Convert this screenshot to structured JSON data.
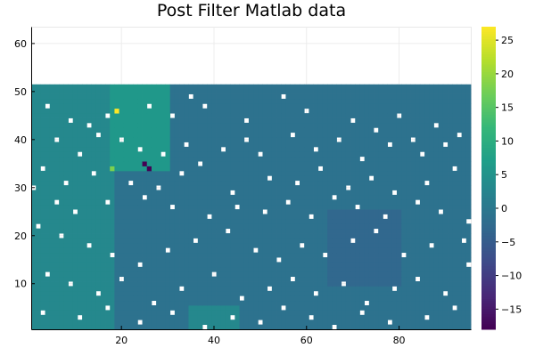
{
  "chart_data": {
    "type": "heatmap",
    "title": "Post Filter Matlab data",
    "xlabel": "",
    "ylabel": "",
    "xlim": [
      0.5,
      95.5
    ],
    "ylim": [
      0.5,
      63.5
    ],
    "x_ticks": [
      20,
      40,
      60,
      80
    ],
    "y_ticks": [
      10,
      20,
      30,
      40,
      50,
      60
    ],
    "grid": true,
    "data_extent": {
      "x": [
        1,
        95
      ],
      "y": [
        1,
        51
      ]
    },
    "colorbar": {
      "colormap": "viridis",
      "range": [
        -18,
        27
      ],
      "ticks": [
        25,
        20,
        15,
        10,
        5,
        0,
        -5,
        -10,
        -15
      ]
    },
    "background_value": -1,
    "notable_cells": [
      {
        "x": 19,
        "y": 46,
        "value": 27
      },
      {
        "x": 26,
        "y": 34,
        "value": -18
      },
      {
        "x": 25,
        "y": 35,
        "value": -18
      },
      {
        "x": 18,
        "y": 34,
        "value": 18
      }
    ],
    "regions": [
      {
        "x": [
          1,
          18
        ],
        "y": [
          1,
          51
        ],
        "value": 3
      },
      {
        "x": [
          18,
          30
        ],
        "y": [
          34,
          51
        ],
        "value": 6
      },
      {
        "x": [
          35,
          45
        ],
        "y": [
          1,
          5
        ],
        "value": 3
      },
      {
        "x": [
          65,
          80
        ],
        "y": [
          10,
          25
        ],
        "value": -3
      }
    ],
    "missing_cells": [
      [
        4,
        47
      ],
      [
        9,
        44
      ],
      [
        13,
        43
      ],
      [
        17,
        45
      ],
      [
        26,
        47
      ],
      [
        31,
        45
      ],
      [
        35,
        49
      ],
      [
        38,
        47
      ],
      [
        47,
        44
      ],
      [
        55,
        49
      ],
      [
        60,
        46
      ],
      [
        70,
        44
      ],
      [
        75,
        42
      ],
      [
        80,
        45
      ],
      [
        83,
        40
      ],
      [
        88,
        43
      ],
      [
        93,
        41
      ],
      [
        6,
        40
      ],
      [
        11,
        37
      ],
      [
        15,
        41
      ],
      [
        20,
        40
      ],
      [
        24,
        38
      ],
      [
        29,
        37
      ],
      [
        34,
        39
      ],
      [
        42,
        38
      ],
      [
        47,
        40
      ],
      [
        50,
        37
      ],
      [
        57,
        41
      ],
      [
        62,
        38
      ],
      [
        67,
        40
      ],
      [
        72,
        36
      ],
      [
        78,
        39
      ],
      [
        85,
        37
      ],
      [
        90,
        39
      ],
      [
        3,
        34
      ],
      [
        8,
        31
      ],
      [
        14,
        33
      ],
      [
        22,
        31
      ],
      [
        28,
        30
      ],
      [
        33,
        33
      ],
      [
        37,
        35
      ],
      [
        44,
        29
      ],
      [
        52,
        32
      ],
      [
        58,
        31
      ],
      [
        63,
        34
      ],
      [
        69,
        30
      ],
      [
        74,
        32
      ],
      [
        79,
        29
      ],
      [
        86,
        31
      ],
      [
        92,
        34
      ],
      [
        1,
        30
      ],
      [
        6,
        27
      ],
      [
        10,
        25
      ],
      [
        17,
        27
      ],
      [
        25,
        28
      ],
      [
        31,
        26
      ],
      [
        39,
        24
      ],
      [
        45,
        26
      ],
      [
        51,
        25
      ],
      [
        56,
        27
      ],
      [
        61,
        24
      ],
      [
        66,
        28
      ],
      [
        71,
        26
      ],
      [
        77,
        24
      ],
      [
        84,
        27
      ],
      [
        89,
        25
      ],
      [
        95,
        23
      ],
      [
        2,
        22
      ],
      [
        7,
        20
      ],
      [
        13,
        18
      ],
      [
        18,
        16
      ],
      [
        24,
        14
      ],
      [
        30,
        17
      ],
      [
        36,
        19
      ],
      [
        43,
        21
      ],
      [
        49,
        17
      ],
      [
        54,
        15
      ],
      [
        59,
        18
      ],
      [
        64,
        16
      ],
      [
        70,
        19
      ],
      [
        75,
        21
      ],
      [
        81,
        16
      ],
      [
        87,
        18
      ],
      [
        94,
        19
      ],
      [
        4,
        12
      ],
      [
        9,
        10
      ],
      [
        15,
        8
      ],
      [
        20,
        11
      ],
      [
        27,
        6
      ],
      [
        33,
        9
      ],
      [
        40,
        12
      ],
      [
        46,
        7
      ],
      [
        52,
        9
      ],
      [
        57,
        11
      ],
      [
        62,
        8
      ],
      [
        68,
        10
      ],
      [
        73,
        6
      ],
      [
        79,
        9
      ],
      [
        84,
        11
      ],
      [
        90,
        8
      ],
      [
        95,
        14
      ],
      [
        3,
        4
      ],
      [
        11,
        3
      ],
      [
        17,
        5
      ],
      [
        24,
        2
      ],
      [
        31,
        4
      ],
      [
        38,
        1
      ],
      [
        44,
        3
      ],
      [
        50,
        2
      ],
      [
        55,
        5
      ],
      [
        61,
        3
      ],
      [
        66,
        1
      ],
      [
        72,
        4
      ],
      [
        78,
        2
      ],
      [
        86,
        3
      ],
      [
        92,
        5
      ]
    ]
  }
}
